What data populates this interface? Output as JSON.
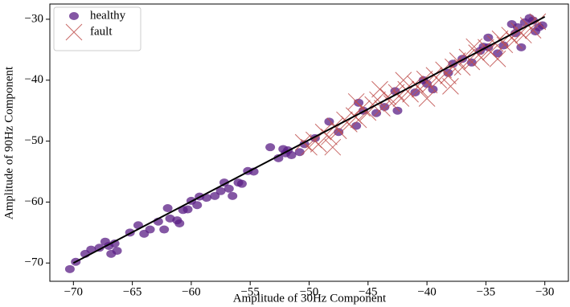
{
  "chart_data": {
    "type": "scatter",
    "xlabel": "Amplitude of 30Hz Component",
    "ylabel": "Amplitude of 90Hz Component",
    "xlim": [
      -72,
      -28
    ],
    "ylim": [
      -73,
      -27.5
    ],
    "xticks": [
      {
        "value": -70,
        "label": "−70"
      },
      {
        "value": -65,
        "label": "−65"
      },
      {
        "value": -60,
        "label": "−60"
      },
      {
        "value": -55,
        "label": "−55"
      },
      {
        "value": -50,
        "label": "−50"
      },
      {
        "value": -45,
        "label": "−45"
      },
      {
        "value": -40,
        "label": "−40"
      },
      {
        "value": -35,
        "label": "−35"
      },
      {
        "value": -30,
        "label": "−30"
      }
    ],
    "yticks": [
      {
        "value": -70,
        "label": "−70"
      },
      {
        "value": -60,
        "label": "−60"
      },
      {
        "value": -50,
        "label": "−50"
      },
      {
        "value": -40,
        "label": "−40"
      },
      {
        "value": -30,
        "label": "−30"
      }
    ],
    "grid": false,
    "legend": "upper left",
    "series": [
      {
        "name": "healthy",
        "marker": "circle",
        "color": "#5b1f86",
        "x": [
          -70.3,
          -69.8,
          -69,
          -68.5,
          -67.8,
          -67.3,
          -67,
          -66.8,
          -66.3,
          -66.5,
          -65.2,
          -64.5,
          -64,
          -63.5,
          -62.8,
          -62.3,
          -62,
          -61.8,
          -61.2,
          -61,
          -60.7,
          -60.3,
          -60,
          -59.5,
          -59.3,
          -58.7,
          -58,
          -57.5,
          -57.2,
          -56.8,
          -56.5,
          -56,
          -55.7,
          -55.2,
          -54.7,
          -53.3,
          -52.6,
          -52.2,
          -51.8,
          -52,
          -51.5,
          -50.8,
          -50.4,
          -49.5,
          -48.3,
          -47.5,
          -46,
          -45.8,
          -45.4,
          -44.3,
          -43.6,
          -42.7,
          -42.5,
          -41,
          -40.3,
          -40,
          -39.5,
          -38.2,
          -37.8,
          -37,
          -36.2,
          -35.5,
          -35.2,
          -34.8,
          -34.8,
          -34,
          -33.5,
          -32.5,
          -32.3,
          -32,
          -31.7,
          -31.3,
          -31,
          -30.5,
          -30.8,
          -30.2,
          -32.8
        ],
        "values": [
          -71,
          -69.8,
          -68.5,
          -67.8,
          -67.5,
          -66.5,
          -67.2,
          -68.5,
          -68,
          -66.8,
          -65,
          -63.8,
          -65.2,
          -64.5,
          -63.2,
          -64.5,
          -61,
          -62.7,
          -63,
          -63.5,
          -61.3,
          -61.2,
          -59.8,
          -60.5,
          -59.1,
          -59.3,
          -59,
          -58.2,
          -56.8,
          -57.8,
          -59,
          -56.8,
          -57,
          -54.9,
          -55,
          -51,
          -52.8,
          -51.3,
          -51.5,
          -52,
          -52.3,
          -51.8,
          -50.5,
          -49.5,
          -46.8,
          -48.5,
          -47.5,
          -43.7,
          -45,
          -45.4,
          -44.4,
          -41.8,
          -45,
          -42,
          -40,
          -40.6,
          -41.5,
          -38.8,
          -37.3,
          -36.5,
          -37.1,
          -35.2,
          -34.5,
          -34.6,
          -33,
          -35.6,
          -34.3,
          -32.3,
          -31.3,
          -34.6,
          -30.5,
          -29.8,
          -30.2,
          -31.3,
          -32,
          -31,
          -30.8
        ]
      },
      {
        "name": "fault",
        "marker": "x",
        "color": "#c0504d",
        "x": [
          -50.5,
          -50,
          -49.6,
          -49.2,
          -48.8,
          -48.3,
          -47.8,
          -47.5,
          -47,
          -46.6,
          -46.2,
          -45.8,
          -45.5,
          -45,
          -44.6,
          -44.2,
          -43.8,
          -43.3,
          -43,
          -42.6,
          -42.2,
          -41.8,
          -41.4,
          -41,
          -40.6,
          -40.2,
          -39.8,
          -39.4,
          -39,
          -38.6,
          -38.2,
          -37.8,
          -37.4,
          -37,
          -36.6,
          -36.2,
          -35.8,
          -35.4,
          -35,
          -34.6,
          -34.2,
          -33.8,
          -33.4,
          -33,
          -32.6,
          -32.2,
          -31.8,
          -31.4,
          -31,
          -30.6,
          -44,
          -40,
          -36,
          -48,
          -42,
          -38,
          -34,
          -46
        ],
        "values": [
          -50.2,
          -51,
          -49.8,
          -50.5,
          -48.5,
          -49.3,
          -47.5,
          -48.3,
          -46.5,
          -47.2,
          -45.8,
          -46.5,
          -44.6,
          -45.3,
          -44,
          -43.2,
          -44.6,
          -42.7,
          -43.8,
          -42,
          -43,
          -41.5,
          -42.3,
          -40.6,
          -41.5,
          -39.8,
          -40.8,
          -39.2,
          -40,
          -38.3,
          -39.3,
          -37.8,
          -36.8,
          -37.9,
          -36.2,
          -37,
          -35.5,
          -36.3,
          -34.6,
          -35.4,
          -34,
          -33.2,
          -34.2,
          -32.6,
          -33.5,
          -31.9,
          -32.6,
          -31,
          -31.8,
          -30.4,
          -41.5,
          -43,
          -34.5,
          -51,
          -40,
          -41,
          -36.5,
          -43.5
        ]
      },
      {
        "marker": "line",
        "color": "#000000",
        "x": [
          -70,
          -30
        ],
        "values": [
          -70,
          -29.6
        ]
      }
    ]
  }
}
